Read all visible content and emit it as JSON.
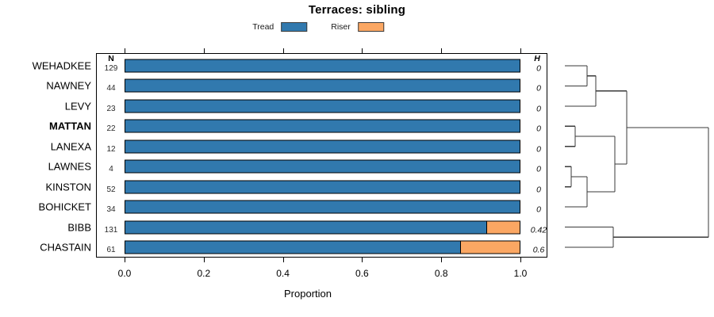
{
  "title": "Terraces: sibling",
  "chart_data": {
    "type": "bar",
    "orientation": "horizontal",
    "stacked": true,
    "title": "Terraces: sibling",
    "xlabel": "Proportion",
    "xlim": [
      0,
      1
    ],
    "xticks": [
      "0.0",
      "0.2",
      "0.4",
      "0.6",
      "0.8",
      "1.0"
    ],
    "grid": false,
    "legend_position": "top",
    "n_header": "N",
    "h_header": "H",
    "categories": [
      "WEHADKEE",
      "NAWNEY",
      "LEVY",
      "MATTAN",
      "LANEXA",
      "LAWNES",
      "KINSTON",
      "BOHICKET",
      "BIBB",
      "CHASTAIN"
    ],
    "emphasized_category": "MATTAN",
    "n_values": [
      129,
      44,
      23,
      22,
      12,
      4,
      52,
      34,
      131,
      61
    ],
    "h_values": [
      "0",
      "0",
      "0",
      "0",
      "0",
      "0",
      "0",
      "0",
      "0.42",
      "0.6"
    ],
    "series": [
      {
        "name": "Tread",
        "color": "#3179AE",
        "values": [
          1,
          1,
          1,
          1,
          1,
          1,
          1,
          1,
          0.915,
          0.85
        ]
      },
      {
        "name": "Riser",
        "color": "#FBA763",
        "values": [
          0,
          0,
          0,
          0,
          0,
          0,
          0,
          0,
          0.085,
          0.15
        ]
      }
    ]
  },
  "dendrogram": {
    "line_color": "#3a3a3a",
    "leaf_order": [
      "WEHADKEE",
      "NAWNEY",
      "LEVY",
      "MATTAN",
      "LANEXA",
      "LAWNES",
      "KINSTON",
      "BOHICKET",
      "BIBB",
      "CHASTAIN"
    ],
    "merges": [
      {
        "id": "m1",
        "children": [
          "leaf-0",
          "leaf-1"
        ],
        "height": 0.155
      },
      {
        "id": "m2",
        "children": [
          "m1",
          "leaf-2"
        ],
        "height": 0.215
      },
      {
        "id": "m3",
        "children": [
          "leaf-3",
          "leaf-4"
        ],
        "height": 0.072
      },
      {
        "id": "m4",
        "children": [
          "leaf-5",
          "leaf-6"
        ],
        "height": 0.044
      },
      {
        "id": "m5",
        "children": [
          "m4",
          "leaf-7"
        ],
        "height": 0.155
      },
      {
        "id": "m6",
        "children": [
          "m3",
          "m5"
        ],
        "height": 0.348
      },
      {
        "id": "m7",
        "children": [
          "m2",
          "m6"
        ],
        "height": 0.431
      },
      {
        "id": "m8",
        "children": [
          "leaf-8",
          "leaf-9"
        ],
        "height": 0.337
      },
      {
        "id": "m9",
        "children": [
          "m7",
          "m8"
        ],
        "height": 1.0
      }
    ]
  }
}
